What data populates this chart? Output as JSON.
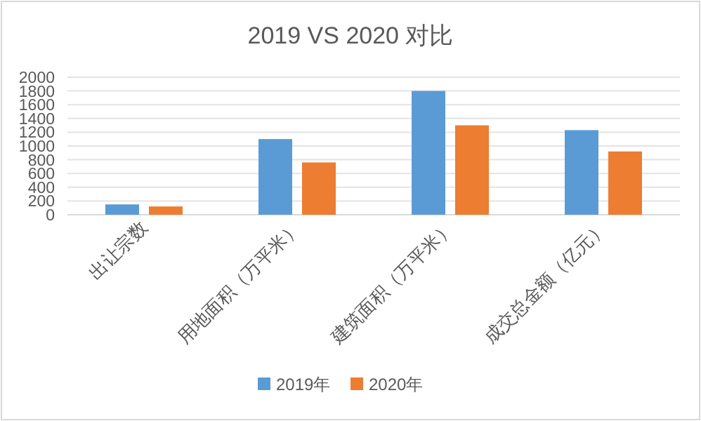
{
  "chart_data": {
    "type": "bar",
    "title": "2019 VS 2020 对比",
    "categories": [
      "出让宗数",
      "用地面积（万平米）",
      "建筑面积（万平米）",
      "成交总金额（亿元）"
    ],
    "series": [
      {
        "name": "2019年",
        "color": "#5b9bd5",
        "values": [
          150,
          1100,
          1800,
          1230
        ]
      },
      {
        "name": "2020年",
        "color": "#ed7d31",
        "values": [
          120,
          760,
          1300,
          920
        ]
      }
    ],
    "ylim": [
      0,
      2000
    ],
    "yticks": [
      0,
      200,
      400,
      600,
      800,
      1000,
      1200,
      1400,
      1600,
      1800,
      2000
    ],
    "grid": "y",
    "legend": "bottom"
  }
}
